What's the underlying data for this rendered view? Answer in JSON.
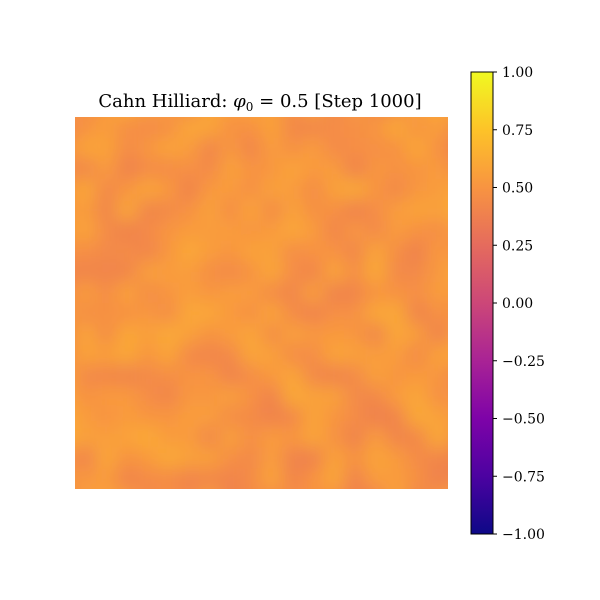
{
  "chart_data": {
    "type": "heatmap",
    "title": "Cahn Hilliard: φ₀ = 0.5 [Step 1000]",
    "title_parts": {
      "prefix": "Cahn Hilliard: ",
      "symbol": "φ",
      "subscript": "0",
      "suffix": " = 0.5 [Step 1000]"
    },
    "phi0": 0.5,
    "step": 1000,
    "colormap": "plasma",
    "colorbar": {
      "vmin": -1.0,
      "vmax": 1.0,
      "ticks": [
        1.0,
        0.75,
        0.5,
        0.25,
        0.0,
        -0.25,
        -0.5,
        -0.75,
        -1.0
      ],
      "tick_labels": [
        "1.00",
        "0.75",
        "0.50",
        "0.25",
        "0.00",
        "−0.25",
        "−0.50",
        "−0.75",
        "−1.00"
      ]
    },
    "field": {
      "mean_value": 0.5,
      "approx_range": [
        0.38,
        0.62
      ],
      "note_values": "nearly uniform field around 0.5 with small smooth fluctuations"
    },
    "axes_visible": false,
    "grid": false
  }
}
